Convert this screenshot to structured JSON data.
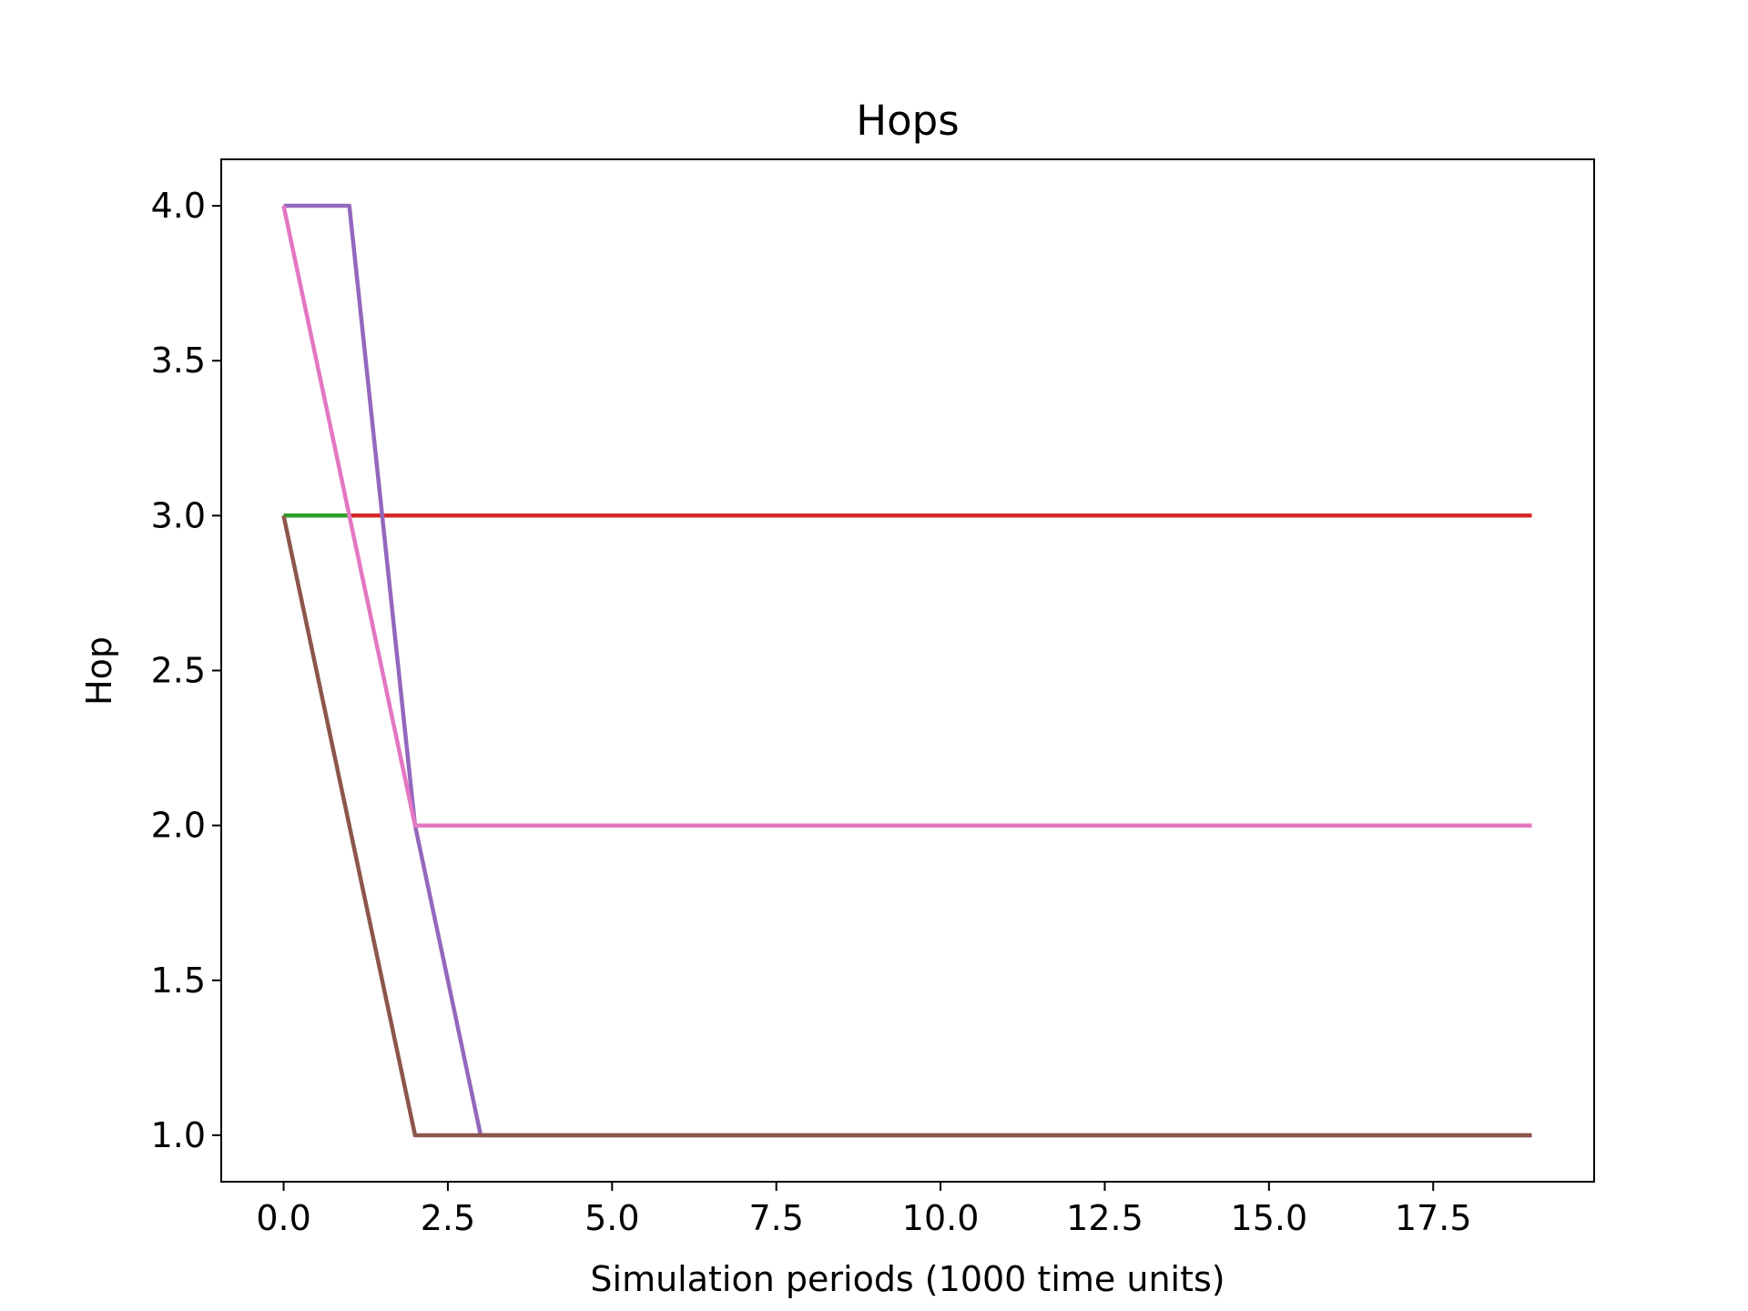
{
  "chart_data": {
    "type": "line",
    "title": "Hops",
    "xlabel": "Simulation periods (1000 time units)",
    "ylabel": "Hop",
    "xlim": [
      -0.95,
      19.95
    ],
    "ylim": [
      0.85,
      4.15
    ],
    "xticks": [
      0,
      2.5,
      5,
      7.5,
      10,
      12.5,
      15,
      17.5
    ],
    "xtick_labels": [
      "0.0",
      "2.5",
      "5.0",
      "7.5",
      "10.0",
      "12.5",
      "15.0",
      "17.5"
    ],
    "yticks": [
      1,
      1.5,
      2,
      2.5,
      3,
      3.5,
      4
    ],
    "ytick_labels": [
      "1.0",
      "1.5",
      "2.0",
      "2.5",
      "3.0",
      "3.5",
      "4.0"
    ],
    "grid": false,
    "series": [
      {
        "color": "#1f77b4",
        "x": [
          0,
          1,
          2,
          3,
          4,
          5,
          6,
          7,
          8,
          9,
          10,
          11,
          12,
          13,
          14,
          15,
          16,
          17,
          18,
          19
        ],
        "y": [
          3,
          3,
          3,
          3,
          3,
          3,
          3,
          3,
          3,
          3,
          3,
          3,
          3,
          3,
          3,
          3,
          3,
          3,
          3,
          3
        ]
      },
      {
        "color": "#ff7f0e",
        "x": [
          0,
          1,
          2,
          3,
          4,
          5,
          6,
          7,
          8,
          9,
          10,
          11,
          12,
          13,
          14,
          15,
          16,
          17,
          18,
          19
        ],
        "y": [
          3,
          3,
          3,
          3,
          3,
          3,
          3,
          3,
          3,
          3,
          3,
          3,
          3,
          3,
          3,
          3,
          3,
          3,
          3,
          3
        ]
      },
      {
        "color": "#2ca02c",
        "x": [
          0,
          1,
          2,
          3,
          4,
          5,
          6,
          7,
          8,
          9,
          10,
          11,
          12,
          13,
          14,
          15,
          16,
          17,
          18,
          19
        ],
        "y": [
          3,
          3,
          3,
          3,
          3,
          3,
          3,
          3,
          3,
          3,
          3,
          3,
          3,
          3,
          3,
          3,
          3,
          3,
          3,
          3
        ]
      },
      {
        "color": "#d62728",
        "x": [
          1,
          2,
          3,
          4,
          5,
          6,
          7,
          8,
          9,
          10,
          11,
          12,
          13,
          14,
          15,
          16,
          17,
          18,
          19
        ],
        "y": [
          3,
          3,
          3,
          3,
          3,
          3,
          3,
          3,
          3,
          3,
          3,
          3,
          3,
          3,
          3,
          3,
          3,
          3,
          3
        ]
      },
      {
        "color": "#9467bd",
        "x": [
          0,
          1,
          2,
          3,
          4,
          5,
          6,
          7,
          8,
          9,
          10,
          11,
          12,
          13,
          14,
          15,
          16,
          17,
          18,
          19
        ],
        "y": [
          4,
          4,
          2,
          1,
          1,
          1,
          1,
          1,
          1,
          1,
          1,
          1,
          1,
          1,
          1,
          1,
          1,
          1,
          1,
          1
        ]
      },
      {
        "color": "#8c564b",
        "x": [
          0,
          1,
          2,
          3,
          4,
          5,
          6,
          7,
          8,
          9,
          10,
          11,
          12,
          13,
          14,
          15,
          16,
          17,
          18,
          19
        ],
        "y": [
          3,
          2,
          1,
          1,
          1,
          1,
          1,
          1,
          1,
          1,
          1,
          1,
          1,
          1,
          1,
          1,
          1,
          1,
          1,
          1
        ]
      },
      {
        "color": "#e377c2",
        "x": [
          0,
          1,
          2,
          3,
          4,
          5,
          6,
          7,
          8,
          9,
          10,
          11,
          12,
          13,
          14,
          15,
          16,
          17,
          18,
          19
        ],
        "y": [
          4,
          3,
          2,
          2,
          2,
          2,
          2,
          2,
          2,
          2,
          2,
          2,
          2,
          2,
          2,
          2,
          2,
          2,
          2,
          2
        ]
      }
    ]
  }
}
